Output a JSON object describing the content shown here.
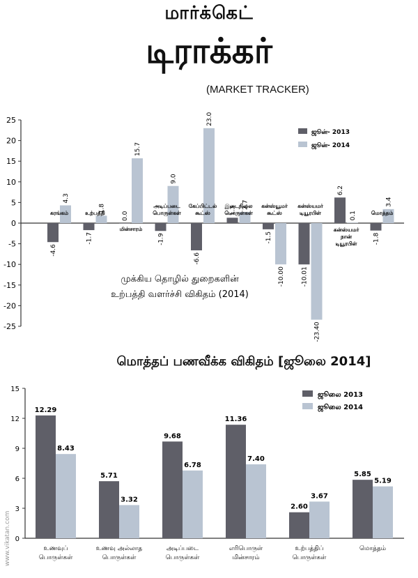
{
  "header": {
    "title_line1": "மார்க்கெட்",
    "title_line2": "டிராக்கர்",
    "title_english": "(MARKET TRACKER)"
  },
  "watermark": "www.vikatan.com",
  "colors": {
    "dark": "#5f5f68",
    "light": "#b9c4d2",
    "axis": "#333333"
  },
  "chart_data": [
    {
      "type": "bar",
      "title": "முக்கிய தொழில் துறைகளின்\nஉற்பத்தி வளர்ச்சி விகிதம் (2014)",
      "title_lines": [
        "முக்கிய தொழில் துறைகளின்",
        "உற்பத்தி வளர்ச்சி விகிதம் (2014)"
      ],
      "categories": [
        [
          "கரங்கம்"
        ],
        [
          "உற்பத்தி"
        ],
        [
          "மின்சாரம்"
        ],
        [
          "அடிப்படை",
          "பொருள்கள்"
        ],
        [
          "கேப்பிட்டல்",
          "கூட்ஸ்"
        ],
        [
          "இடைநிலை",
          "பொருள்கள்"
        ],
        [
          "கன்ஸ்யூமர்",
          "கூட்ஸ்"
        ],
        [
          "கன்ஸ்யமர்",
          "டியூரபிள்"
        ],
        [
          "கன்ஸ்யமர்",
          "நான்",
          "டியூரபிள்"
        ],
        [
          "மொத்தம்"
        ]
      ],
      "series": [
        {
          "name": "ஜூன்- 2013",
          "values": [
            -4.6,
            -1.7,
            0.0,
            -1.9,
            -6.6,
            1.3,
            -1.5,
            -10.01,
            6.2,
            -1.8
          ],
          "labels": [
            "-4.6",
            "-1.7",
            "0.0",
            "-1.9",
            "-6.6",
            "1.3",
            "-1.5",
            "-10.01",
            "6.2",
            "-1.8"
          ]
        },
        {
          "name": "ஜூன்- 2014",
          "values": [
            4.3,
            1.8,
            15.7,
            9.0,
            23.0,
            2.7,
            -10.0,
            -23.4,
            0.1,
            3.4
          ],
          "labels": [
            "4.3",
            "1.8",
            "15.7",
            "9.0",
            "23.0",
            "2.7",
            "-10.00",
            "-23.40",
            "0.1",
            "3.4"
          ]
        }
      ],
      "ylim": [
        -25,
        25
      ],
      "yticks": [
        "25",
        "20",
        "15",
        "10",
        "5",
        "0",
        "-5",
        "-10",
        "-15",
        "-20",
        "-25"
      ],
      "legend": "top-right",
      "grid": false
    },
    {
      "type": "bar",
      "title": "மொத்தப் பணவீக்க விகிதம் [ஜூலை  2014]",
      "categories": [
        [
          "உணவுப்",
          "பொருள்கள்"
        ],
        [
          "உணவு அல்லாத",
          "பொருள்கள்"
        ],
        [
          "அடிப்படை",
          "பொருள்கள்"
        ],
        [
          "எரிபொருள்",
          "மின்சாரம்"
        ],
        [
          "உற்பத்திப்",
          "பொருள்கள்"
        ],
        [
          "மொத்தம்"
        ]
      ],
      "series": [
        {
          "name": "ஜூலை 2013",
          "values": [
            12.29,
            5.71,
            9.68,
            11.36,
            2.6,
            5.85
          ],
          "labels": [
            "12.29",
            "5.71",
            "9.68",
            "11.36",
            "2.60",
            "5.85"
          ]
        },
        {
          "name": "ஜூலை 2014",
          "values": [
            8.43,
            3.32,
            6.78,
            7.4,
            3.67,
            5.19
          ],
          "labels": [
            "8.43",
            "3.32",
            "6.78",
            "7.40",
            "3.67",
            "5.19"
          ]
        }
      ],
      "ylim": [
        0,
        15
      ],
      "yticks": [
        "15",
        "12",
        "9",
        "6",
        "3",
        "0"
      ],
      "legend": "top-right",
      "grid": false
    }
  ]
}
